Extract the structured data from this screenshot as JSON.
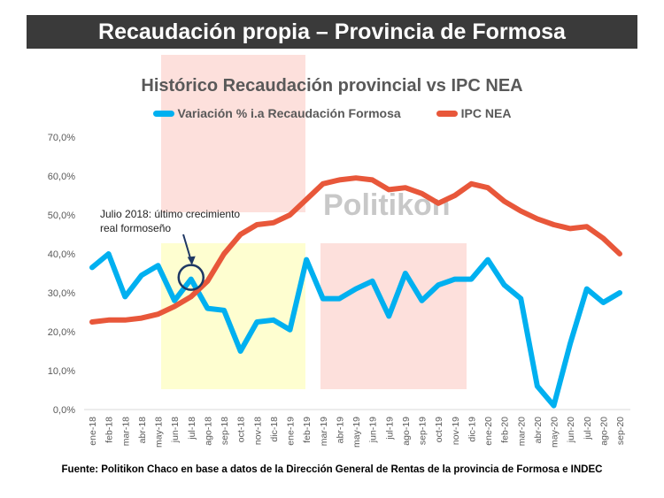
{
  "banner": "Recaudación propia – Provincia de Formosa",
  "source": "Fuente: Politikon Chaco en base a datos de la Dirección General de Rentas de la provincia de Formosa e INDEC",
  "watermark": "Politikon",
  "chart_data": {
    "type": "line",
    "title": "Histórico Recaudación provincial vs IPC NEA",
    "legend_position": "top",
    "ylim": [
      0,
      70
    ],
    "yticks": [
      "0,0%",
      "10,0%",
      "20,0%",
      "30,0%",
      "40,0%",
      "50,0%",
      "60,0%",
      "70,0%"
    ],
    "grid": false,
    "categories": [
      "ene-18",
      "feb-18",
      "mar-18",
      "abr-18",
      "may-18",
      "jun-18",
      "jul-18",
      "ago-18",
      "sep-18",
      "oct-18",
      "nov-18",
      "dic-18",
      "ene-19",
      "feb-19",
      "mar-19",
      "abr-19",
      "may-19",
      "jun-19",
      "jul-19",
      "ago-19",
      "sep-19",
      "oct-19",
      "nov-19",
      "dic-19",
      "ene-20",
      "feb-20",
      "mar-20",
      "abr-20",
      "may-20",
      "jun-20",
      "jul-20",
      "ago-20",
      "sep-20"
    ],
    "series": [
      {
        "name": "Variación % i.a Recaudación Formosa",
        "color": "#00b0f0",
        "values": [
          36.5,
          40,
          29,
          34.5,
          37,
          28,
          33.5,
          26,
          25.5,
          15,
          22.5,
          23,
          20.5,
          38.5,
          28.5,
          28.5,
          31,
          33,
          24,
          35,
          28,
          32,
          33.5,
          33.5,
          38.5,
          32,
          28.5,
          6,
          1,
          17,
          31,
          27.5,
          30
        ]
      },
      {
        "name": "IPC NEA",
        "color": "#e8573a",
        "values": [
          22.5,
          23,
          23,
          23.5,
          24.5,
          26.5,
          29,
          33,
          40,
          45,
          47.5,
          48,
          50,
          54,
          58,
          59,
          59.5,
          59,
          56.5,
          57,
          55.5,
          53,
          55,
          58,
          57,
          53.5,
          51,
          49,
          47.5,
          46.5,
          47,
          44,
          40
        ]
      }
    ],
    "annotation": {
      "text_line1": "Julio 2018: último crecimiento",
      "text_line2": "real formoseño",
      "category": "jul-18"
    },
    "highlight_colors": {
      "pink": "#fde0dc",
      "yellow": "#fefed0"
    }
  }
}
